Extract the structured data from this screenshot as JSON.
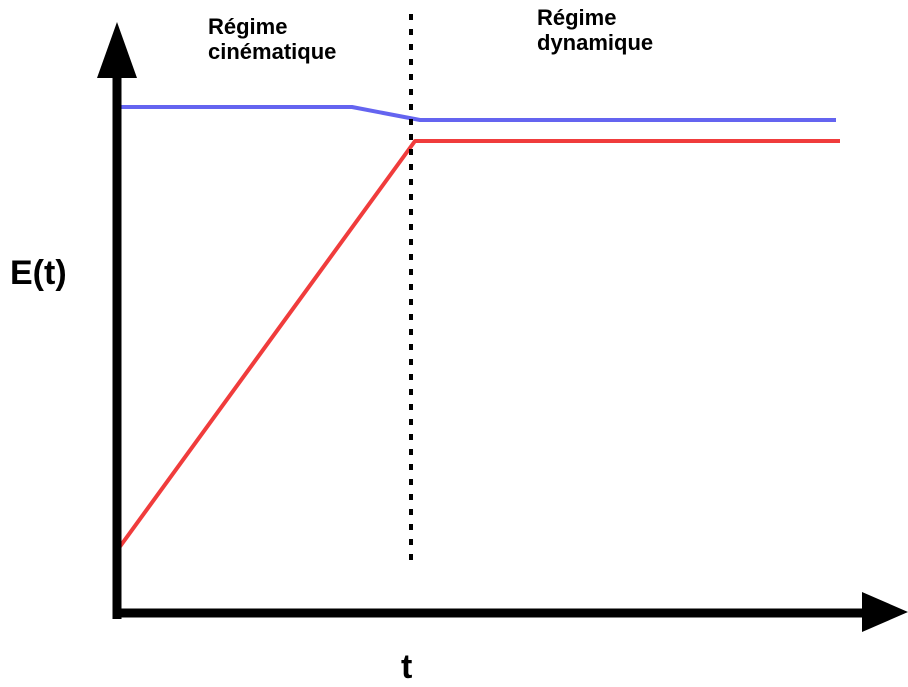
{
  "regimes": {
    "kinematic": {
      "line1": "Régime",
      "line2": "cinématique"
    },
    "dynamic": {
      "line1": "Régime",
      "line2": "dynamique"
    }
  },
  "axes": {
    "y_label": "E(t)",
    "x_label": "t"
  },
  "colors": {
    "upper_curve": "#6464f0",
    "lower_curve": "#f03c3c",
    "axes": "#000000"
  }
}
